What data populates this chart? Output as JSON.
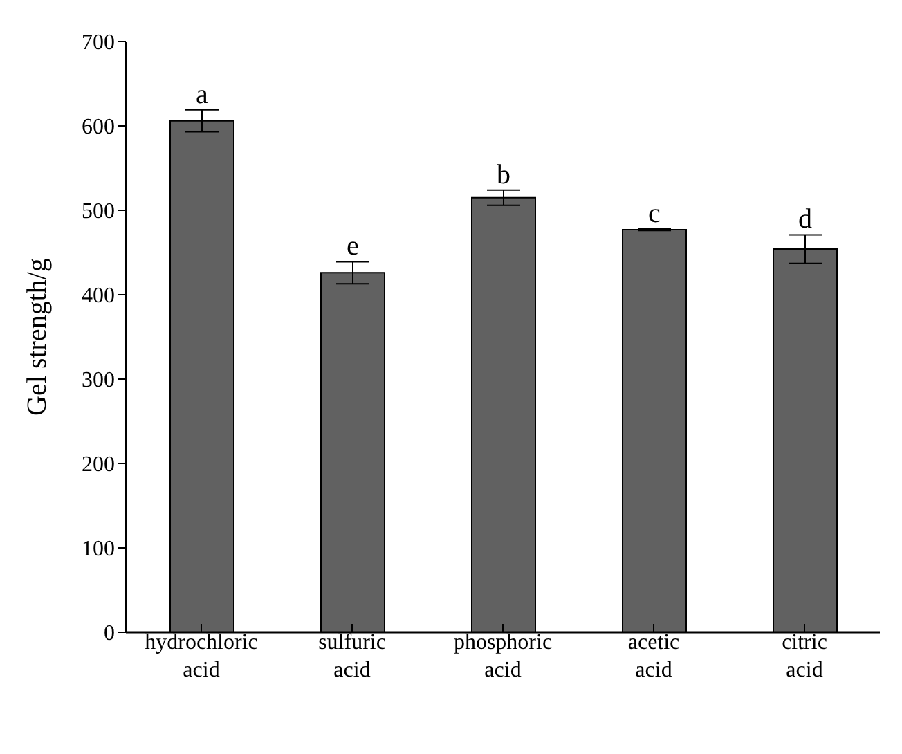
{
  "chart_data": {
    "type": "bar",
    "ylabel": "Gel strength/g",
    "categories": [
      "hydrochloric acid",
      "sulfuric acid",
      "phosphoric acid",
      "acetic acid",
      "citric acid"
    ],
    "values": [
      606,
      426,
      515,
      477,
      454
    ],
    "errors": [
      13,
      13,
      9,
      1,
      17
    ],
    "color": "#616161",
    "ylim": [
      0,
      700
    ],
    "yticks": [
      0,
      100,
      200,
      300,
      400,
      500,
      600,
      700
    ],
    "grid": false,
    "legend": false,
    "annotations": [
      {
        "text": "a",
        "x": "hydrochloric acid",
        "y": 619
      },
      {
        "text": "e",
        "x": "sulfuric acid",
        "y": 439
      },
      {
        "text": "b",
        "x": "phosphoric acid",
        "y": 524
      },
      {
        "text": "c",
        "x": "acetic acid",
        "y": 478
      },
      {
        "text": "d",
        "x": "citric acid",
        "y": 471
      }
    ]
  }
}
